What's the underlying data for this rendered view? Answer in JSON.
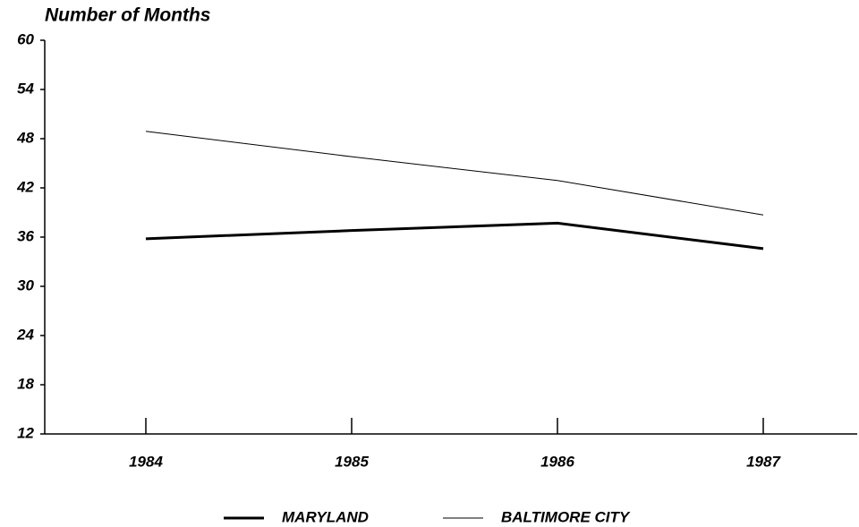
{
  "chart_data": {
    "type": "line",
    "y_axis_label": "Number of Months",
    "categories": [
      "1984",
      "1985",
      "1986",
      "1987"
    ],
    "series": [
      {
        "name": "MARYLAND",
        "color": "#000000",
        "values": [
          35.8,
          36.8,
          37.7,
          34.6
        ]
      },
      {
        "name": "BALTIMORE CITY",
        "color": "#000000",
        "values": [
          48.9,
          45.8,
          42.9,
          38.7
        ]
      }
    ],
    "ylim": [
      12,
      60
    ],
    "yticks": [
      12,
      18,
      24,
      30,
      36,
      42,
      48,
      54,
      60
    ],
    "grid": false,
    "legend": "bottom"
  }
}
